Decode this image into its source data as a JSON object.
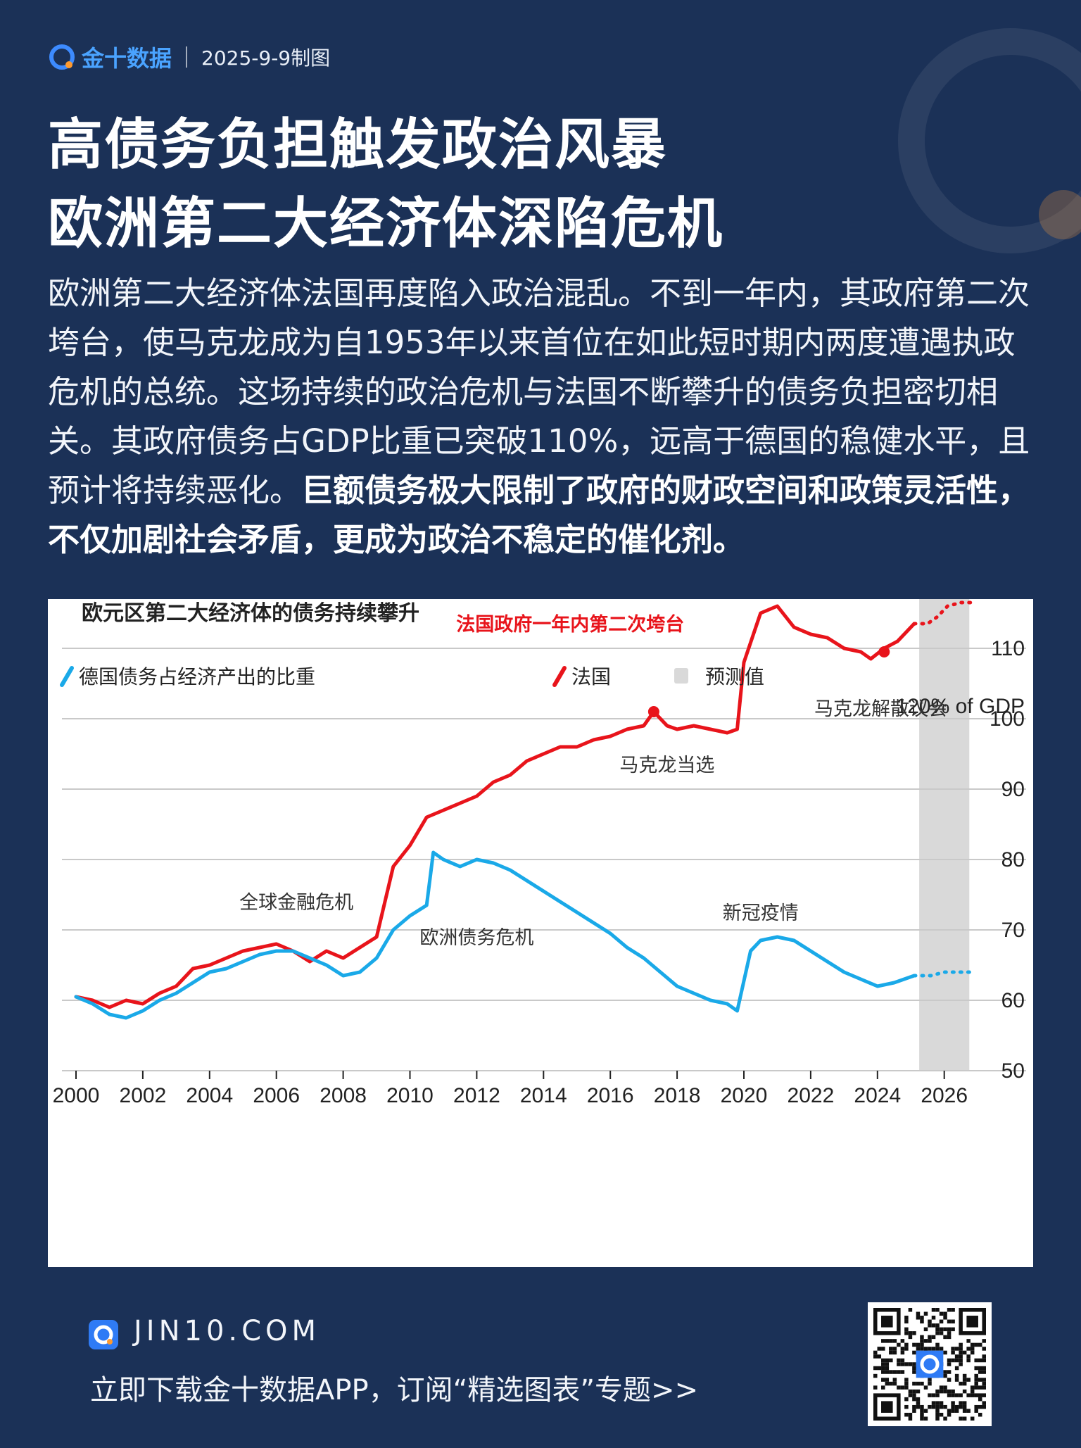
{
  "header": {
    "brand": "金十数据",
    "date": "2025-9-9制图"
  },
  "title": {
    "line1": "高债务负担触发政治风暴",
    "line2": "欧洲第二大经济体深陷危机"
  },
  "body": {
    "text_plain": "欧洲第二大经济体法国再度陷入政治混乱。不到一年内，其政府第二次垮台，使马克龙成为自1953年以来首位在如此短时期内两度遭遇执政危机的总统。这场持续的政治危机与法国不断攀升的债务负担密切相关。其政府债务占GDP比重已突破110%，远高于德国的稳健水平，且预计将持续恶化。",
    "text_bold": "巨额债务极大限制了政府的财政空间和政策灵活性，不仅加剧社会矛盾，更成为政治不稳定的催化剂。"
  },
  "chart_data": {
    "type": "line",
    "title": "欧元区第二大经济体的债务持续攀升",
    "unit_label": "120% of GDP",
    "ylim": [
      50,
      120
    ],
    "y_ticks": [
      50,
      60,
      70,
      80,
      90,
      100,
      110
    ],
    "xlim": [
      2000,
      2027
    ],
    "x_ticks": [
      2000,
      2002,
      2004,
      2006,
      2008,
      2010,
      2012,
      2014,
      2016,
      2018,
      2020,
      2022,
      2024,
      2026
    ],
    "legend": [
      {
        "name": "德国债务占经济产出的比重",
        "color": "#1aa9e8"
      },
      {
        "name": "法国",
        "color": "#e8141b"
      },
      {
        "name": "预测值",
        "color": "#d9d9d9"
      }
    ],
    "forecast_range": [
      2025.25,
      2026.75
    ],
    "series": [
      {
        "name": "法国",
        "color": "#e8141b",
        "points": [
          [
            2000,
            60.5
          ],
          [
            2000.5,
            60
          ],
          [
            2001,
            59
          ],
          [
            2001.5,
            60
          ],
          [
            2002,
            59.5
          ],
          [
            2002.5,
            61
          ],
          [
            2003,
            62
          ],
          [
            2003.5,
            64.5
          ],
          [
            2004,
            65
          ],
          [
            2004.5,
            66
          ],
          [
            2005,
            67
          ],
          [
            2005.5,
            67.5
          ],
          [
            2006,
            68
          ],
          [
            2006.5,
            67
          ],
          [
            2007,
            65.5
          ],
          [
            2007.5,
            67
          ],
          [
            2008,
            66
          ],
          [
            2008.5,
            67.5
          ],
          [
            2009,
            69
          ],
          [
            2009.5,
            79
          ],
          [
            2010,
            82
          ],
          [
            2010.5,
            86
          ],
          [
            2011,
            87
          ],
          [
            2011.5,
            88
          ],
          [
            2012,
            89
          ],
          [
            2012.5,
            91
          ],
          [
            2013,
            92
          ],
          [
            2013.5,
            94
          ],
          [
            2014,
            95
          ],
          [
            2014.5,
            96
          ],
          [
            2015,
            96
          ],
          [
            2015.5,
            97
          ],
          [
            2016,
            97.5
          ],
          [
            2016.5,
            98.5
          ],
          [
            2017,
            99
          ],
          [
            2017.3,
            101
          ],
          [
            2017.7,
            99
          ],
          [
            2018,
            98.5
          ],
          [
            2018.5,
            99
          ],
          [
            2019,
            98.5
          ],
          [
            2019.5,
            98
          ],
          [
            2019.8,
            98.5
          ],
          [
            2020,
            108
          ],
          [
            2020.5,
            115
          ],
          [
            2021,
            116
          ],
          [
            2021.5,
            113
          ],
          [
            2022,
            112
          ],
          [
            2022.5,
            111.5
          ],
          [
            2023,
            110
          ],
          [
            2023.5,
            109.5
          ],
          [
            2023.8,
            108.5
          ],
          [
            2024.2,
            110
          ],
          [
            2024.6,
            111
          ],
          [
            2025.1,
            113.5
          ]
        ]
      },
      {
        "name": "法国预测",
        "color": "#e8141b",
        "dashed": true,
        "points": [
          [
            2025.1,
            113.5
          ],
          [
            2025.5,
            113.5
          ],
          [
            2025.8,
            114.5
          ],
          [
            2026.1,
            116
          ],
          [
            2026.5,
            116.5
          ],
          [
            2026.8,
            116.5
          ]
        ]
      },
      {
        "name": "德国债务占经济产出的比重",
        "color": "#1aa9e8",
        "points": [
          [
            2000,
            60.5
          ],
          [
            2000.5,
            59.5
          ],
          [
            2001,
            58
          ],
          [
            2001.5,
            57.5
          ],
          [
            2002,
            58.5
          ],
          [
            2002.5,
            60
          ],
          [
            2003,
            61
          ],
          [
            2003.5,
            62.5
          ],
          [
            2004,
            64
          ],
          [
            2004.5,
            64.5
          ],
          [
            2005,
            65.5
          ],
          [
            2005.5,
            66.5
          ],
          [
            2006,
            67
          ],
          [
            2006.5,
            67
          ],
          [
            2007,
            66
          ],
          [
            2007.5,
            65
          ],
          [
            2008,
            63.5
          ],
          [
            2008.5,
            64
          ],
          [
            2009,
            66
          ],
          [
            2009.5,
            70
          ],
          [
            2010,
            72
          ],
          [
            2010.5,
            73.5
          ],
          [
            2010.7,
            81
          ],
          [
            2011,
            80
          ],
          [
            2011.5,
            79
          ],
          [
            2012,
            80
          ],
          [
            2012.5,
            79.5
          ],
          [
            2013,
            78.5
          ],
          [
            2013.5,
            77
          ],
          [
            2014,
            75.5
          ],
          [
            2014.5,
            74
          ],
          [
            2015,
            72.5
          ],
          [
            2015.5,
            71
          ],
          [
            2016,
            69.5
          ],
          [
            2016.5,
            67.5
          ],
          [
            2017,
            66
          ],
          [
            2017.5,
            64
          ],
          [
            2018,
            62
          ],
          [
            2018.5,
            61
          ],
          [
            2019,
            60
          ],
          [
            2019.5,
            59.5
          ],
          [
            2019.8,
            58.5
          ],
          [
            2020.2,
            67
          ],
          [
            2020.5,
            68.5
          ],
          [
            2021,
            69
          ],
          [
            2021.5,
            68.5
          ],
          [
            2022,
            67
          ],
          [
            2022.5,
            65.5
          ],
          [
            2023,
            64
          ],
          [
            2023.5,
            63
          ],
          [
            2024,
            62
          ],
          [
            2024.5,
            62.5
          ],
          [
            2025.1,
            63.5
          ]
        ]
      },
      {
        "name": "德国预测",
        "color": "#1aa9e8",
        "dashed": true,
        "points": [
          [
            2025.1,
            63.5
          ],
          [
            2025.6,
            63.5
          ],
          [
            2026,
            64
          ],
          [
            2026.4,
            64
          ],
          [
            2026.8,
            64
          ]
        ]
      }
    ],
    "markers": [
      {
        "x": 2017.3,
        "y": 101,
        "color": "#e8141b"
      },
      {
        "x": 2024.2,
        "y": 109.5,
        "color": "#e8141b"
      }
    ],
    "annotations": [
      {
        "text": "法国政府一年内第二次垮台",
        "x": 2014.8,
        "y": 112.5,
        "color": "#e8141b",
        "bold": true
      },
      {
        "text": "马克龙解散议会",
        "x": 2024.1,
        "y": 100.5,
        "color": "#333333"
      },
      {
        "text": "马克龙当选",
        "x": 2017.7,
        "y": 92.5,
        "color": "#333333"
      },
      {
        "text": "全球金融危机",
        "x": 2006.6,
        "y": 73,
        "color": "#333333"
      },
      {
        "text": "欧洲债务危机",
        "x": 2012,
        "y": 68,
        "color": "#333333"
      },
      {
        "text": "新冠疫情",
        "x": 2020.5,
        "y": 71.5,
        "color": "#333333"
      }
    ]
  },
  "footer": {
    "site": "JIN10.COM",
    "cta": "立即下载金十数据APP，订阅“精选图表”专题>>"
  }
}
